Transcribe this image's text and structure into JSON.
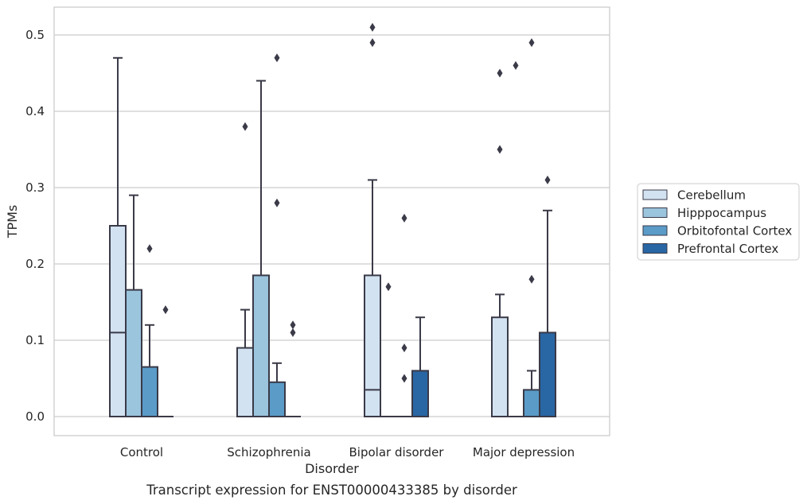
{
  "chart_data": {
    "type": "box",
    "title": "",
    "caption": "Transcript expression for ENST00000433385 by disorder",
    "xlabel": "Disorder",
    "ylabel": "TPMs",
    "ylim": [
      -0.025,
      0.537
    ],
    "yticks": [
      "0.0",
      "0.1",
      "0.2",
      "0.3",
      "0.4",
      "0.5"
    ],
    "ytick_values": [
      0.0,
      0.1,
      0.2,
      0.3,
      0.4,
      0.5
    ],
    "grid": true,
    "legend_position": "right",
    "categories": [
      "Control",
      "Schizophrenia",
      "Bipolar disorder",
      "Major depression"
    ],
    "series": [
      {
        "name": "Cerebellum",
        "color": "#d2e2f0",
        "boxes": [
          {
            "min": 0.0,
            "q1": 0.0,
            "median": 0.11,
            "q3": 0.25,
            "max": 0.47,
            "outliers": []
          },
          {
            "min": 0.0,
            "q1": 0.0,
            "median": 0.0,
            "q3": 0.09,
            "max": 0.14,
            "outliers": [
              0.38
            ]
          },
          {
            "min": 0.0,
            "q1": 0.0,
            "median": 0.035,
            "q3": 0.185,
            "max": 0.31,
            "outliers": [
              0.49,
              0.51
            ]
          },
          {
            "min": 0.0,
            "q1": 0.0,
            "median": 0.0,
            "q3": 0.13,
            "max": 0.16,
            "outliers": [
              0.35,
              0.45
            ]
          }
        ]
      },
      {
        "name": "Hipppocampus",
        "color": "#9bc4dd",
        "boxes": [
          {
            "min": 0.0,
            "q1": 0.0,
            "median": 0.0,
            "q3": 0.166,
            "max": 0.29,
            "outliers": []
          },
          {
            "min": 0.0,
            "q1": 0.0,
            "median": 0.0,
            "q3": 0.185,
            "max": 0.44,
            "outliers": []
          },
          {
            "min": 0.0,
            "q1": 0.0,
            "median": 0.0,
            "q3": 0.0,
            "max": 0.0,
            "outliers": [
              0.17
            ]
          },
          {
            "min": 0.0,
            "q1": 0.0,
            "median": 0.0,
            "q3": 0.0,
            "max": 0.0,
            "outliers": [
              0.46
            ]
          }
        ]
      },
      {
        "name": "Orbitofontal Cortex",
        "color": "#5a9bc8",
        "boxes": [
          {
            "min": 0.0,
            "q1": 0.0,
            "median": 0.0,
            "q3": 0.065,
            "max": 0.12,
            "outliers": [
              0.22
            ]
          },
          {
            "min": 0.0,
            "q1": 0.0,
            "median": 0.0,
            "q3": 0.045,
            "max": 0.07,
            "outliers": [
              0.28,
              0.47
            ]
          },
          {
            "min": 0.0,
            "q1": 0.0,
            "median": 0.0,
            "q3": 0.0,
            "max": 0.0,
            "outliers": [
              0.05,
              0.09,
              0.26
            ]
          },
          {
            "min": 0.0,
            "q1": 0.0,
            "median": 0.0,
            "q3": 0.035,
            "max": 0.06,
            "outliers": [
              0.18,
              0.49
            ]
          }
        ]
      },
      {
        "name": "Prefrontal Cortex",
        "color": "#2966a4",
        "boxes": [
          {
            "min": 0.0,
            "q1": 0.0,
            "median": 0.0,
            "q3": 0.0,
            "max": 0.0,
            "outliers": [
              0.14
            ]
          },
          {
            "min": 0.0,
            "q1": 0.0,
            "median": 0.0,
            "q3": 0.0,
            "max": 0.0,
            "outliers": [
              0.11,
              0.12
            ]
          },
          {
            "min": 0.0,
            "q1": 0.0,
            "median": 0.0,
            "q3": 0.06,
            "max": 0.13,
            "outliers": []
          },
          {
            "min": 0.0,
            "q1": 0.0,
            "median": 0.0,
            "q3": 0.11,
            "max": 0.27,
            "outliers": [
              0.31
            ]
          }
        ]
      }
    ]
  }
}
